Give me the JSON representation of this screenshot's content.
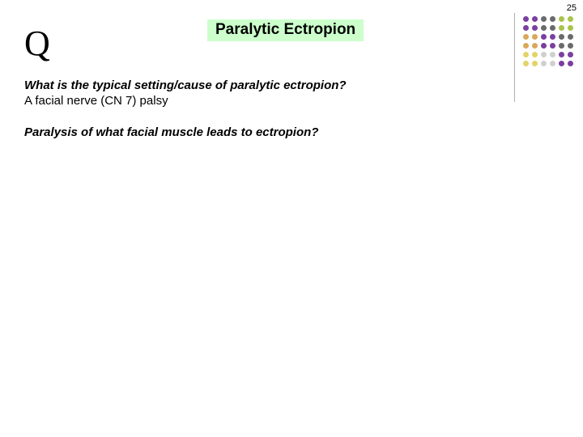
{
  "page_number": "25",
  "q_letter": "Q",
  "title": "Paralytic Ectropion",
  "title_bg": "#ccffcc",
  "q1_question": "What is the typical setting/cause of paralytic ectropion?",
  "q1_answer": "A facial nerve (CN 7) palsy",
  "q2_question": "Paralysis of what facial muscle leads to ectropion?",
  "vline_color": "#b0b0b0",
  "dots": {
    "grid": [
      [
        "#7b3f9f",
        "#7b3f9f",
        "#6a6a6a",
        "#6a6a6a",
        "#a8c44a",
        "#a8c44a"
      ],
      [
        "#7b3f9f",
        "#7b3f9f",
        "#6a6a6a",
        "#6a6a6a",
        "#a8c44a",
        "#a8c44a"
      ],
      [
        "#d9a85a",
        "#d9a85a",
        "#7b3f9f",
        "#7b3f9f",
        "#6a6a6a",
        "#6a6a6a"
      ],
      [
        "#d9a85a",
        "#d9a85a",
        "#7b3f9f",
        "#7b3f9f",
        "#6a6a6a",
        "#6a6a6a"
      ],
      [
        "#e3d36a",
        "#e3d36a",
        "#d0d0d0",
        "#d0d0d0",
        "#7b3f9f",
        "#7b3f9f"
      ],
      [
        "#e3d36a",
        "#e3d36a",
        "#d0d0d0",
        "#d0d0d0",
        "#7b3f9f",
        "#7b3f9f"
      ]
    ]
  }
}
